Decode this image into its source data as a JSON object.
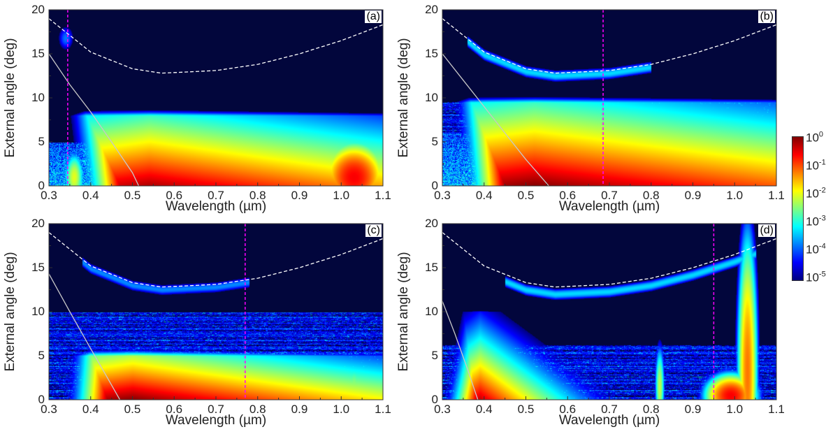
{
  "chart_data": [
    {
      "type": "heatmap",
      "panel_label": "(a)",
      "xlabel": "Wavelength (µm)",
      "ylabel": "External angle (deg)",
      "xlim": [
        0.3,
        1.1
      ],
      "ylim": [
        0,
        20
      ],
      "xticks": [
        "0.3",
        "0.4",
        "0.5",
        "0.6",
        "0.7",
        "0.8",
        "0.9",
        "1.0",
        "1.1"
      ],
      "yticks": [
        "0",
        "5",
        "10",
        "15",
        "20"
      ],
      "dashed_curve": {
        "x": [
          0.3,
          0.4,
          0.5,
          0.57,
          0.7,
          0.8,
          0.9,
          1.0,
          1.1
        ],
        "y": [
          19.0,
          15.2,
          13.3,
          12.8,
          13.1,
          13.8,
          15.0,
          16.5,
          18.3
        ],
        "color": "#ffffff"
      },
      "solid_curve": {
        "x": [
          0.3,
          0.35,
          0.4,
          0.45,
          0.5,
          0.515
        ],
        "y": [
          15.0,
          11.5,
          8.4,
          5.0,
          1.5,
          0.0
        ],
        "color": "#c8c8c8"
      },
      "marker_line": {
        "x": 0.345,
        "color": "#ff00ff"
      }
    },
    {
      "type": "heatmap",
      "panel_label": "(b)",
      "xlabel": "Wavelength (µm)",
      "ylabel": "External angle (deg)",
      "xlim": [
        0.3,
        1.1
      ],
      "ylim": [
        0,
        20
      ],
      "xticks": [
        "0.3",
        "0.4",
        "0.5",
        "0.6",
        "0.7",
        "0.8",
        "0.9",
        "1.0",
        "1.1"
      ],
      "yticks": [
        "0",
        "5",
        "10",
        "15",
        "20"
      ],
      "dashed_curve": {
        "x": [
          0.3,
          0.4,
          0.5,
          0.57,
          0.7,
          0.8,
          0.9,
          1.0,
          1.1
        ],
        "y": [
          19.0,
          15.2,
          13.3,
          12.8,
          13.1,
          13.8,
          15.0,
          16.5,
          18.3
        ],
        "color": "#ffffff"
      },
      "solid_curve": {
        "x": [
          0.3,
          0.35,
          0.4,
          0.45,
          0.5,
          0.555
        ],
        "y": [
          15.0,
          12.0,
          9.0,
          6.0,
          3.0,
          0.0
        ],
        "color": "#c8c8c8"
      },
      "marker_line": {
        "x": 0.685,
        "color": "#ff00ff"
      }
    },
    {
      "type": "heatmap",
      "panel_label": "(c)",
      "xlabel": "Wavelength (µm)",
      "ylabel": "External angle (deg)",
      "xlim": [
        0.3,
        1.1
      ],
      "ylim": [
        0,
        20
      ],
      "xticks": [
        "0.3",
        "0.4",
        "0.5",
        "0.6",
        "0.7",
        "0.8",
        "0.9",
        "1.0",
        "1.1"
      ],
      "yticks": [
        "0",
        "5",
        "10",
        "15",
        "20"
      ],
      "dashed_curve": {
        "x": [
          0.3,
          0.4,
          0.5,
          0.57,
          0.7,
          0.8,
          0.9,
          1.0,
          1.1
        ],
        "y": [
          19.0,
          15.2,
          13.3,
          12.8,
          13.1,
          13.8,
          15.0,
          16.5,
          18.3
        ],
        "color": "#ffffff"
      },
      "solid_curve": {
        "x": [
          0.3,
          0.35,
          0.4,
          0.44,
          0.47
        ],
        "y": [
          14.3,
          10.0,
          5.8,
          2.5,
          0.0
        ],
        "color": "#c8c8c8"
      },
      "marker_line": {
        "x": 0.77,
        "color": "#ff00ff"
      }
    },
    {
      "type": "heatmap",
      "panel_label": "(d)",
      "xlabel": "Wavelength (µm)",
      "ylabel": "External angle (deg)",
      "xlim": [
        0.3,
        1.1
      ],
      "ylim": [
        0,
        20
      ],
      "xticks": [
        "0.3",
        "0.4",
        "0.5",
        "0.6",
        "0.7",
        "0.8",
        "0.9",
        "1.0",
        "1.1"
      ],
      "yticks": [
        "0",
        "5",
        "10",
        "15",
        "20"
      ],
      "dashed_curve": {
        "x": [
          0.3,
          0.4,
          0.5,
          0.57,
          0.7,
          0.8,
          0.9,
          1.0,
          1.1
        ],
        "y": [
          19.0,
          15.2,
          13.3,
          12.8,
          13.1,
          13.8,
          15.0,
          16.5,
          18.3
        ],
        "color": "#ffffff"
      },
      "solid_curve": {
        "x": [
          0.3,
          0.33,
          0.36,
          0.385
        ],
        "y": [
          11.2,
          7.5,
          3.5,
          0.0
        ],
        "color": "#c8c8c8"
      },
      "marker_line": {
        "x": 0.95,
        "color": "#ff00ff"
      }
    }
  ],
  "colorbar": {
    "colormap": "jet",
    "scale": "log",
    "range": [
      1e-05,
      1
    ],
    "ticks": [
      {
        "base": "10",
        "exp": "0"
      },
      {
        "base": "10",
        "exp": "-1"
      },
      {
        "base": "10",
        "exp": "-2"
      },
      {
        "base": "10",
        "exp": "-3"
      },
      {
        "base": "10",
        "exp": "-4"
      },
      {
        "base": "10",
        "exp": "-5"
      }
    ]
  }
}
